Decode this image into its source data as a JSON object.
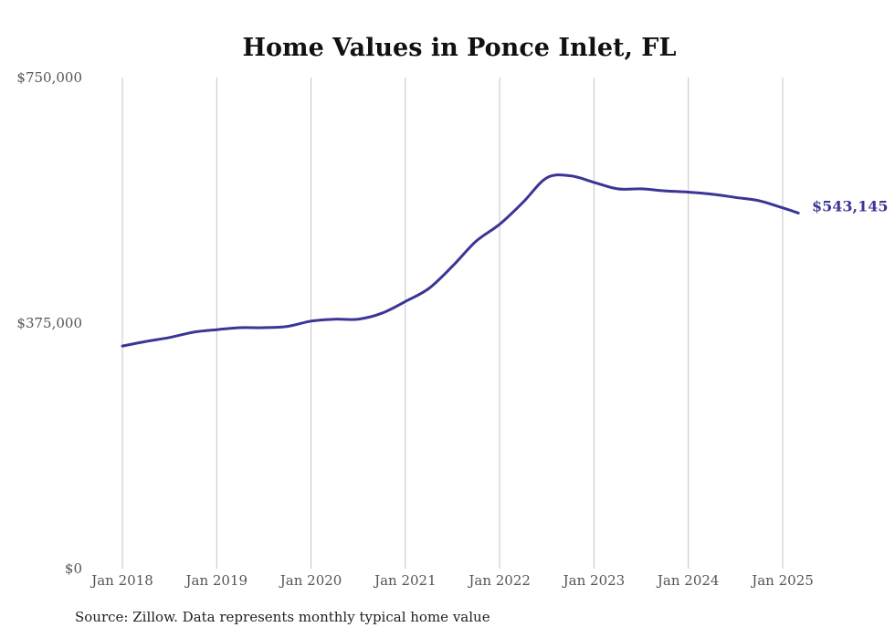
{
  "chart_data": {
    "type": "line",
    "title": "Home Values in Ponce Inlet, FL",
    "xlabel": "",
    "ylabel": "",
    "ylim": [
      0,
      750000
    ],
    "y_ticks": [
      "$0",
      "$375,000",
      "$750,000"
    ],
    "y_tick_values": [
      0,
      375000,
      750000
    ],
    "x_ticks": [
      "Jan 2018",
      "Jan 2019",
      "Jan 2020",
      "Jan 2021",
      "Jan 2022",
      "Jan 2023",
      "Jan 2024",
      "Jan 2025"
    ],
    "x_tick_values": [
      "2018-01",
      "2019-01",
      "2020-01",
      "2021-01",
      "2022-01",
      "2023-01",
      "2024-01",
      "2025-01"
    ],
    "grid": "vertical",
    "line_color": "#3b3596",
    "end_label": "$543,145",
    "series": [
      {
        "x": [
          "2018-01",
          "2018-04",
          "2018-07",
          "2018-10",
          "2019-01",
          "2019-04",
          "2019-07",
          "2019-10",
          "2020-01",
          "2020-04",
          "2020-07",
          "2020-10",
          "2021-01",
          "2021-04",
          "2021-07",
          "2021-10",
          "2022-01",
          "2022-04",
          "2022-07",
          "2022-10",
          "2023-01",
          "2023-04",
          "2023-07",
          "2023-10",
          "2024-01",
          "2024-04",
          "2024-07",
          "2024-10",
          "2025-01",
          "2025-03"
        ],
        "y": [
          340000,
          347000,
          353000,
          361000,
          365000,
          368000,
          368000,
          370000,
          378000,
          381000,
          381000,
          390000,
          408000,
          428000,
          462000,
          500000,
          526000,
          560000,
          597000,
          600000,
          590000,
          580000,
          580000,
          577000,
          575000,
          572000,
          567000,
          562000,
          551000,
          543145
        ]
      }
    ]
  },
  "source_note": "Source: Zillow. Data represents monthly typical home value"
}
